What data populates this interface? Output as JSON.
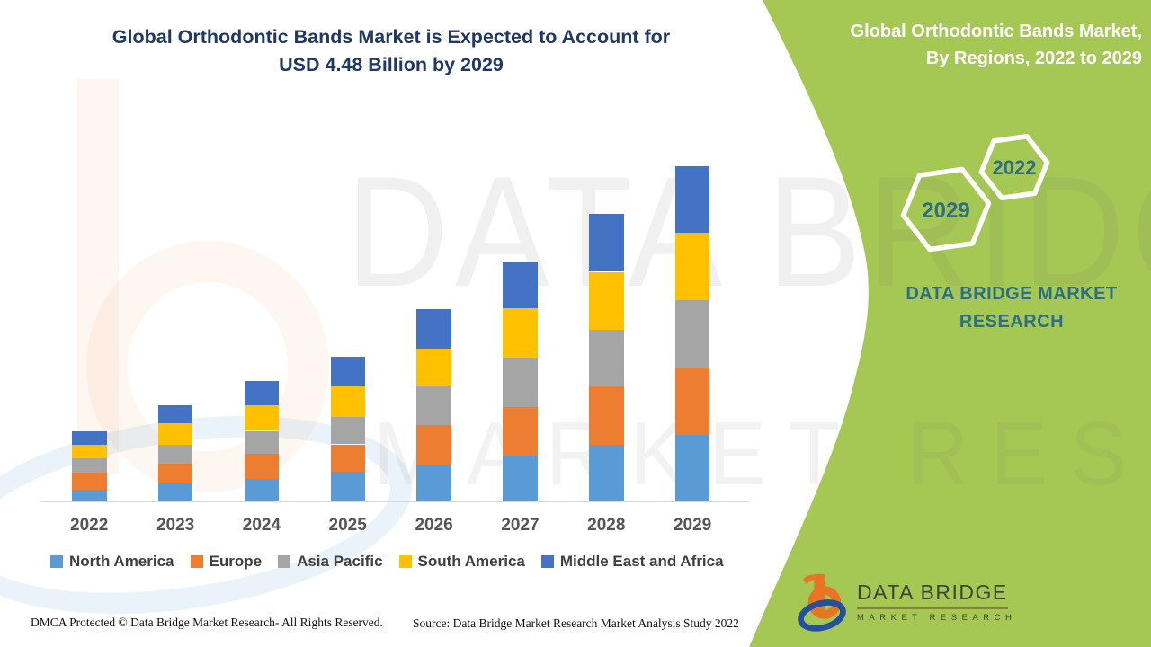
{
  "page": {
    "title_line1": "Global Orthodontic Bands Market is Expected to Account for",
    "title_line2": "USD 4.48 Billion by 2029",
    "footer_left": "DMCA Protected © Data Bridge Market Research- All Rights Reserved.",
    "footer_source": "Source: Data Bridge Market Research Market Analysis Study 2022"
  },
  "side_panel": {
    "title_line1": "Global Orthodontic Bands Market,",
    "title_line2": "By Regions, 2022 to 2029",
    "hexagon_small_year": "2022",
    "hexagon_large_year": "2029",
    "brand_line1": "DATA BRIDGE MARKET",
    "brand_line2": "RESEARCH",
    "logo_title": "DATA BRIDGE",
    "logo_subtitle": "MARKET RESEARCH"
  },
  "watermark": {
    "line1": "DATA BRIDGE",
    "line2": "MARKET RESEARCH"
  },
  "theme": {
    "panel_green": "#A5C854",
    "brand_teal": "#2E6E84",
    "title_navy": "#1F3864",
    "axis_gray": "#D9D9D9"
  },
  "chart_data": {
    "type": "bar",
    "stacked": true,
    "title": "Global Orthodontic Bands Market is Expected to Account for USD 4.48 Billion by 2029",
    "subtitle": "Global Orthodontic Bands Market, By Regions, 2022 to 2029",
    "unit": "USD Billion",
    "categories": [
      "2022",
      "2023",
      "2024",
      "2025",
      "2026",
      "2027",
      "2028",
      "2029"
    ],
    "series": [
      {
        "name": "North America",
        "color": "#5B9BD5",
        "values": [
          0.16,
          0.25,
          0.3,
          0.39,
          0.49,
          0.61,
          0.75,
          0.89
        ]
      },
      {
        "name": "Europe",
        "color": "#ED7D31",
        "values": [
          0.22,
          0.25,
          0.33,
          0.37,
          0.53,
          0.65,
          0.8,
          0.89
        ]
      },
      {
        "name": "Asia Pacific",
        "color": "#A5A5A5",
        "values": [
          0.19,
          0.26,
          0.31,
          0.37,
          0.53,
          0.66,
          0.74,
          0.9
        ]
      },
      {
        "name": "South America",
        "color": "#FFC000",
        "values": [
          0.18,
          0.28,
          0.34,
          0.41,
          0.49,
          0.65,
          0.77,
          0.9
        ]
      },
      {
        "name": "Middle East and Africa",
        "color": "#4472C4",
        "values": [
          0.19,
          0.24,
          0.33,
          0.39,
          0.52,
          0.62,
          0.77,
          0.89
        ]
      }
    ],
    "totals_by_year": [
      0.94,
      1.28,
      1.61,
      1.93,
      2.56,
      3.19,
      3.83,
      4.47
    ],
    "highlight_total_2029": "USD 4.48 Billion",
    "ylim": [
      0,
      4.6
    ],
    "grid": false,
    "legend_position": "bottom",
    "x_axis_labels": [
      "2022",
      "2023",
      "2024",
      "2025",
      "2026",
      "2027",
      "2028",
      "2029"
    ]
  }
}
